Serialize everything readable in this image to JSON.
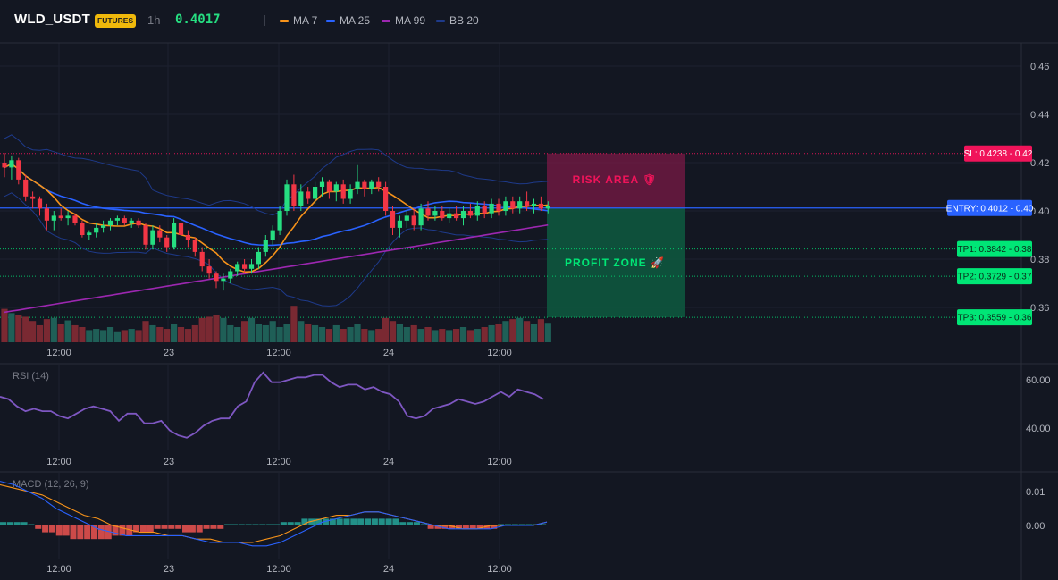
{
  "header": {
    "symbol": "WLD_USDT",
    "badge": "FUTURES",
    "timeframe": "1h",
    "price": "0.4017",
    "indicators": [
      {
        "label": "MA 7",
        "color": "#f7931a"
      },
      {
        "label": "MA 25",
        "color": "#2962ff"
      },
      {
        "label": "MA 99",
        "color": "#9c27b0"
      },
      {
        "label": "BB 20",
        "color": "#1e3a8a"
      }
    ]
  },
  "colors": {
    "background": "#131722",
    "bull": "#26de81",
    "bear": "#f23645",
    "volume_bull": "#1f5f57",
    "volume_bear": "#7a2932",
    "ma7": "#f7931a",
    "ma25": "#2962ff",
    "ma99": "#9c27b0",
    "bb": "#1e3a8a",
    "sl": "#f0145a",
    "entry": "#2962ff",
    "tp": "#00e676",
    "rsi": "#7e57c2",
    "macd_line": "#2962ff",
    "signal_line": "#f7931a",
    "hist_pos": "#26a69a",
    "hist_neg": "#ef5350"
  },
  "chart_data": [
    {
      "type": "candlestick",
      "title": "WLD_USDT",
      "y_ticks": [
        0.46,
        0.44,
        0.42,
        0.4,
        0.38,
        0.36
      ],
      "x_ticks": [
        "12:00",
        "23",
        "12:00",
        "24",
        "12:00"
      ],
      "ohlc": [
        [
          0.42,
          0.424,
          0.414,
          0.418
        ],
        [
          0.418,
          0.423,
          0.413,
          0.421
        ],
        [
          0.421,
          0.422,
          0.411,
          0.413
        ],
        [
          0.413,
          0.415,
          0.404,
          0.406
        ],
        [
          0.406,
          0.408,
          0.401,
          0.405
        ],
        [
          0.405,
          0.406,
          0.398,
          0.401
        ],
        [
          0.401,
          0.403,
          0.392,
          0.396
        ],
        [
          0.396,
          0.4,
          0.392,
          0.398
        ],
        [
          0.398,
          0.401,
          0.396,
          0.397
        ],
        [
          0.397,
          0.4,
          0.394,
          0.398
        ],
        [
          0.398,
          0.399,
          0.394,
          0.395
        ],
        [
          0.395,
          0.396,
          0.389,
          0.39
        ],
        [
          0.39,
          0.392,
          0.388,
          0.391
        ],
        [
          0.391,
          0.395,
          0.389,
          0.393
        ],
        [
          0.393,
          0.396,
          0.391,
          0.394
        ],
        [
          0.394,
          0.397,
          0.392,
          0.396
        ],
        [
          0.396,
          0.398,
          0.394,
          0.397
        ],
        [
          0.397,
          0.398,
          0.394,
          0.395
        ],
        [
          0.395,
          0.397,
          0.393,
          0.396
        ],
        [
          0.396,
          0.397,
          0.393,
          0.394
        ],
        [
          0.394,
          0.395,
          0.384,
          0.386
        ],
        [
          0.386,
          0.394,
          0.384,
          0.392
        ],
        [
          0.392,
          0.394,
          0.387,
          0.389
        ],
        [
          0.389,
          0.39,
          0.383,
          0.385
        ],
        [
          0.385,
          0.397,
          0.384,
          0.395
        ],
        [
          0.395,
          0.396,
          0.389,
          0.39
        ],
        [
          0.39,
          0.392,
          0.385,
          0.388
        ],
        [
          0.388,
          0.389,
          0.381,
          0.383
        ],
        [
          0.383,
          0.385,
          0.375,
          0.377
        ],
        [
          0.377,
          0.38,
          0.372,
          0.374
        ],
        [
          0.374,
          0.375,
          0.368,
          0.371
        ],
        [
          0.371,
          0.374,
          0.367,
          0.372
        ],
        [
          0.372,
          0.376,
          0.37,
          0.375
        ],
        [
          0.375,
          0.379,
          0.373,
          0.378
        ],
        [
          0.378,
          0.38,
          0.374,
          0.376
        ],
        [
          0.376,
          0.38,
          0.374,
          0.378
        ],
        [
          0.378,
          0.385,
          0.376,
          0.383
        ],
        [
          0.383,
          0.39,
          0.381,
          0.388
        ],
        [
          0.388,
          0.394,
          0.386,
          0.392
        ],
        [
          0.392,
          0.402,
          0.39,
          0.4
        ],
        [
          0.4,
          0.413,
          0.398,
          0.411
        ],
        [
          0.411,
          0.415,
          0.4,
          0.402
        ],
        [
          0.402,
          0.411,
          0.4,
          0.408
        ],
        [
          0.408,
          0.41,
          0.403,
          0.405
        ],
        [
          0.405,
          0.412,
          0.403,
          0.41
        ],
        [
          0.41,
          0.414,
          0.406,
          0.412
        ],
        [
          0.412,
          0.413,
          0.405,
          0.408
        ],
        [
          0.408,
          0.412,
          0.404,
          0.411
        ],
        [
          0.411,
          0.413,
          0.403,
          0.405
        ],
        [
          0.405,
          0.411,
          0.403,
          0.409
        ],
        [
          0.409,
          0.419,
          0.407,
          0.412
        ],
        [
          0.412,
          0.413,
          0.406,
          0.409
        ],
        [
          0.409,
          0.413,
          0.407,
          0.412
        ],
        [
          0.412,
          0.414,
          0.408,
          0.41
        ],
        [
          0.41,
          0.412,
          0.398,
          0.4
        ],
        [
          0.4,
          0.402,
          0.39,
          0.393
        ],
        [
          0.393,
          0.398,
          0.389,
          0.396
        ],
        [
          0.396,
          0.4,
          0.393,
          0.398
        ],
        [
          0.398,
          0.401,
          0.392,
          0.394
        ],
        [
          0.394,
          0.403,
          0.392,
          0.401
        ],
        [
          0.401,
          0.404,
          0.396,
          0.398
        ],
        [
          0.398,
          0.402,
          0.396,
          0.4
        ],
        [
          0.4,
          0.402,
          0.396,
          0.397
        ],
        [
          0.397,
          0.401,
          0.395,
          0.399
        ],
        [
          0.399,
          0.402,
          0.396,
          0.397
        ],
        [
          0.397,
          0.402,
          0.394,
          0.4
        ],
        [
          0.4,
          0.403,
          0.397,
          0.398
        ],
        [
          0.398,
          0.404,
          0.396,
          0.402
        ],
        [
          0.402,
          0.404,
          0.397,
          0.399
        ],
        [
          0.399,
          0.405,
          0.397,
          0.403
        ],
        [
          0.403,
          0.405,
          0.398,
          0.4
        ],
        [
          0.4,
          0.406,
          0.398,
          0.404
        ],
        [
          0.404,
          0.406,
          0.399,
          0.401
        ],
        [
          0.401,
          0.406,
          0.399,
          0.404
        ],
        [
          0.404,
          0.408,
          0.4,
          0.402
        ],
        [
          0.402,
          0.405,
          0.399,
          0.403
        ],
        [
          0.403,
          0.406,
          0.4,
          0.401
        ],
        [
          0.401,
          0.404,
          0.399,
          0.402
        ]
      ],
      "volume_level": [
        0.55,
        0.48,
        0.45,
        0.42,
        0.35,
        0.28,
        0.38,
        0.4,
        0.3,
        0.36,
        0.28,
        0.25,
        0.2,
        0.22,
        0.2,
        0.25,
        0.18,
        0.2,
        0.22,
        0.2,
        0.35,
        0.28,
        0.25,
        0.22,
        0.3,
        0.25,
        0.22,
        0.28,
        0.4,
        0.42,
        0.45,
        0.4,
        0.28,
        0.25,
        0.35,
        0.4,
        0.3,
        0.28,
        0.35,
        0.25,
        0.3,
        0.6,
        0.35,
        0.3,
        0.28,
        0.25,
        0.22,
        0.28,
        0.22,
        0.25,
        0.3,
        0.22,
        0.2,
        0.22,
        0.4,
        0.35,
        0.3,
        0.25,
        0.28,
        0.22,
        0.25,
        0.2,
        0.22,
        0.2,
        0.22,
        0.25,
        0.2,
        0.22,
        0.25,
        0.28,
        0.3,
        0.35,
        0.38,
        0.4,
        0.35,
        0.3,
        0.38,
        0.32
      ],
      "levels": {
        "sl": {
          "label": "SL: 0.4238 - 0.42",
          "value": 0.4238
        },
        "entry": {
          "label": "ENTRY: 0.4012 - 0.40",
          "value": 0.4012
        },
        "tp1": {
          "label": "TP1: 0.3842 - 0.38",
          "value": 0.3842
        },
        "tp2": {
          "label": "TP2: 0.3729 - 0.37",
          "value": 0.3729
        },
        "tp3": {
          "label": "TP3: 0.3559 - 0.36",
          "value": 0.3559
        }
      },
      "zones": {
        "risk_label": "RISK AREA 🛡",
        "profit_label": "PROFIT ZONE 🚀"
      }
    },
    {
      "type": "line",
      "name": "RSI (14)",
      "y_ticks": [
        60.0,
        40.0
      ],
      "x_ticks": [
        "12:00",
        "23",
        "12:00",
        "24",
        "12:00"
      ],
      "values": [
        53,
        52,
        49,
        47,
        48,
        47,
        47,
        45,
        44,
        46,
        48,
        49,
        48,
        47,
        43,
        46,
        46,
        42,
        42,
        43,
        39,
        37,
        36,
        38,
        41,
        43,
        44,
        44,
        49,
        51,
        59,
        63,
        59,
        59,
        60,
        61,
        61,
        62,
        62,
        59,
        57,
        58,
        58,
        56,
        57,
        55,
        54,
        51,
        45,
        44,
        45,
        48,
        49,
        50,
        52,
        51,
        50,
        51,
        53,
        55,
        53,
        56,
        55,
        54,
        52
      ]
    },
    {
      "type": "line",
      "name": "MACD (12, 26, 9)",
      "y_ticks": [
        0.01,
        0.0
      ],
      "x_ticks": [
        "12:00",
        "23",
        "12:00",
        "24",
        "12:00"
      ],
      "macd": [
        0.013,
        0.012,
        0.01,
        0.008,
        0.005,
        0.003,
        0.001,
        -0.001,
        -0.002,
        -0.003,
        -0.003,
        -0.003,
        -0.003,
        -0.003,
        -0.004,
        -0.005,
        -0.005,
        -0.005,
        -0.006,
        -0.006,
        -0.005,
        -0.003,
        -0.001,
        0.001,
        0.002,
        0.003,
        0.004,
        0.004,
        0.003,
        0.002,
        0.001,
        0.0,
        -0.001,
        -0.001,
        -0.001,
        -0.001,
        0.0,
        0.0,
        0.0,
        0.001
      ],
      "signal": [
        0.012,
        0.011,
        0.01,
        0.009,
        0.007,
        0.005,
        0.003,
        0.002,
        0.0,
        -0.001,
        -0.002,
        -0.002,
        -0.003,
        -0.003,
        -0.004,
        -0.004,
        -0.005,
        -0.005,
        -0.005,
        -0.004,
        -0.003,
        -0.001,
        0.001,
        0.002,
        0.003,
        0.003,
        0.004,
        0.004,
        0.003,
        0.002,
        0.001,
        0.0,
        0.0,
        -0.001,
        -0.001,
        0.0,
        0.0,
        0.0,
        0.0,
        0.001
      ],
      "histogram": [
        0.001,
        0.001,
        0.001,
        0.001,
        0.0,
        -0.001,
        -0.002,
        -0.002,
        -0.003,
        -0.003,
        -0.004,
        -0.004,
        -0.004,
        -0.004,
        -0.004,
        -0.004,
        -0.003,
        -0.003,
        -0.003,
        -0.002,
        -0.002,
        -0.002,
        -0.001,
        -0.001,
        -0.001,
        -0.001,
        -0.002,
        -0.002,
        -0.002,
        -0.001,
        -0.001,
        -0.001,
        0.0,
        0.0,
        0.0,
        0.0,
        0.0,
        0.0,
        0.0,
        0.0,
        0.001,
        0.001,
        0.001,
        0.002,
        0.002,
        0.002,
        0.002,
        0.002,
        0.002,
        0.002,
        0.002,
        0.002,
        0.002,
        0.002,
        0.002,
        0.002,
        0.002,
        0.001,
        0.001,
        0.001,
        0.0,
        -0.001,
        -0.001,
        -0.001,
        -0.001,
        -0.001,
        -0.001,
        -0.001,
        -0.001,
        -0.001,
        -0.001,
        0.0,
        0.0,
        0.0,
        0.0,
        0.0,
        0.0,
        0.0
      ]
    }
  ]
}
